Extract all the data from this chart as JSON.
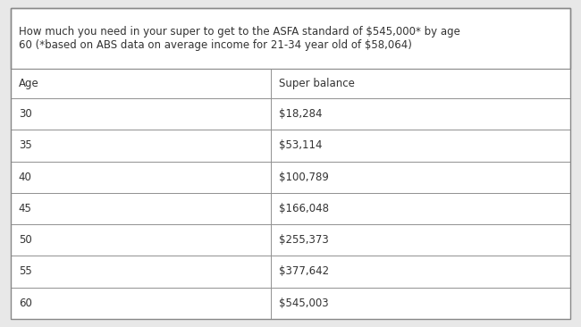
{
  "title": "How much you need in your super to get to the ASFA standard of $545,000* by age\n60 (*based on ABS data on average income for 21-34 year old of $58,064)",
  "col_headers": [
    "Age",
    "Super balance"
  ],
  "rows": [
    [
      "30",
      "$18,284"
    ],
    [
      "35",
      "$53,114"
    ],
    [
      "40",
      "$100,789"
    ],
    [
      "45",
      "$166,048"
    ],
    [
      "50",
      "$255,373"
    ],
    [
      "55",
      "$377,642"
    ],
    [
      "60",
      "$545,003"
    ]
  ],
  "bg_color": "#e8e8e8",
  "table_bg": "#ffffff",
  "border_color": "#888888",
  "text_color": "#333333",
  "col_split": 0.465,
  "font_size": 8.5,
  "title_font_size": 8.5,
  "fig_width": 6.5,
  "fig_height": 3.66,
  "dpi": 100
}
